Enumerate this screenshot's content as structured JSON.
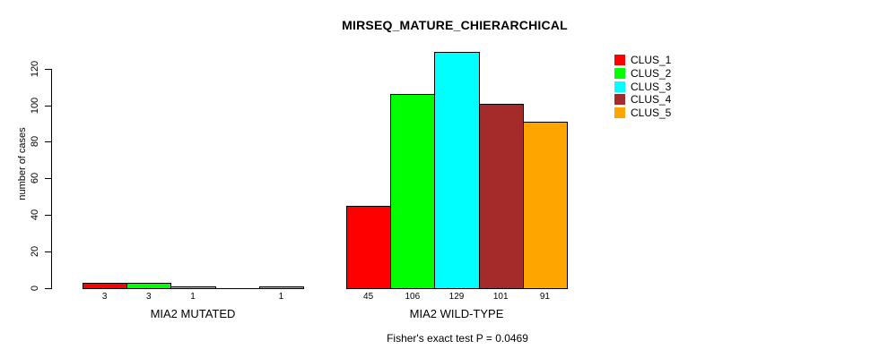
{
  "chart_data": {
    "type": "bar",
    "title": "MIRSEQ_MATURE_CHIERARCHICAL",
    "xlabel": "",
    "ylabel": "number of cases",
    "ylim": [
      0,
      130
    ],
    "yticks": [
      0,
      20,
      40,
      60,
      80,
      100,
      120
    ],
    "grid": false,
    "legend_position": "right",
    "legend": [
      {
        "label": "CLUS_1",
        "color": "#FF0000"
      },
      {
        "label": "CLUS_2",
        "color": "#00FF00"
      },
      {
        "label": "CLUS_3",
        "color": "#00FFFF"
      },
      {
        "label": "CLUS_4",
        "color": "#A52A2A"
      },
      {
        "label": "CLUS_5",
        "color": "#FFA500"
      }
    ],
    "groups": [
      {
        "label": "MIA2 MUTATED",
        "values": [
          3,
          3,
          1,
          0,
          1
        ],
        "bar_labels": [
          "3",
          "3",
          "1",
          "",
          "1"
        ]
      },
      {
        "label": "MIA2 WILD-TYPE",
        "values": [
          45,
          106,
          129,
          101,
          91
        ],
        "bar_labels": [
          "45",
          "106",
          "129",
          "101",
          "91"
        ]
      }
    ],
    "footnote": "Fisher's exact test P = 0.0469"
  }
}
